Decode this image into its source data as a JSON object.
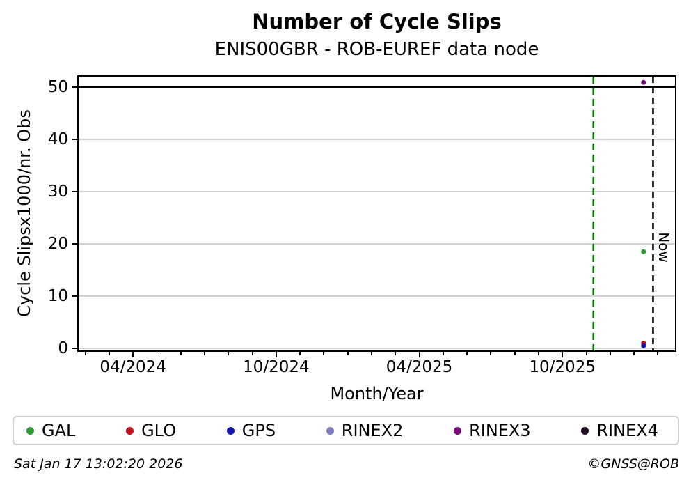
{
  "chart_data": {
    "type": "scatter",
    "title": "Number of Cycle Slips",
    "subtitle": "ENIS00GBR - ROB-EUREF data node",
    "xlabel": "Month/Year",
    "ylabel": "Cycle Slipsx1000/nr. Obs",
    "x_axis": {
      "unit": "months relative to 04/2024",
      "domain": [
        -2.28,
        22.72
      ],
      "major_ticks": [
        {
          "pos": 0,
          "label": "04/2024"
        },
        {
          "pos": 6,
          "label": "10/2024"
        },
        {
          "pos": 12,
          "label": "04/2025"
        },
        {
          "pos": 18,
          "label": "10/2025"
        }
      ],
      "minor_tick_start": -2,
      "minor_tick_end": 22,
      "minor_tick_step": 1
    },
    "y_axis": {
      "domain": [
        -0.4,
        52
      ],
      "ticks": [
        {
          "pos": 0,
          "label": "0"
        },
        {
          "pos": 10,
          "label": "10"
        },
        {
          "pos": 20,
          "label": "20"
        },
        {
          "pos": 30,
          "label": "30"
        },
        {
          "pos": 40,
          "label": "40"
        },
        {
          "pos": 50,
          "label": "50"
        }
      ]
    },
    "grid": {
      "on": true,
      "color": "#b6b6b6"
    },
    "series": [
      {
        "name": "GAL",
        "color": "#2e9b33",
        "points": [
          {
            "x": 21.4,
            "y": 18.5
          }
        ]
      },
      {
        "name": "GLO",
        "color": "#c00d1e",
        "points": [
          {
            "x": 21.4,
            "y": 1.0
          }
        ]
      },
      {
        "name": "GPS",
        "color": "#1414ad",
        "points": [
          {
            "x": 21.4,
            "y": 0.5
          }
        ]
      },
      {
        "name": "RINEX2",
        "color": "#7d7dbe",
        "points": []
      },
      {
        "name": "RINEX3",
        "color": "#760b76",
        "points": [
          {
            "x": 21.4,
            "y": 50.9
          }
        ]
      },
      {
        "name": "RINEX4",
        "color": "#1d0c22",
        "points": []
      }
    ],
    "annotations": {
      "threshold_line": {
        "y": 50,
        "color": "#000000",
        "style": "solid"
      },
      "green_vline": {
        "x": 19.3,
        "color": "#008000",
        "style": "dashed"
      },
      "now_vline": {
        "x": 21.8,
        "color": "#000000",
        "style": "dashed",
        "label": "Now"
      }
    },
    "legend_position": "bottom"
  },
  "footer": {
    "timestamp": "Sat Jan 17 13:02:20 2026",
    "copyright": "©GNSS@ROB"
  }
}
